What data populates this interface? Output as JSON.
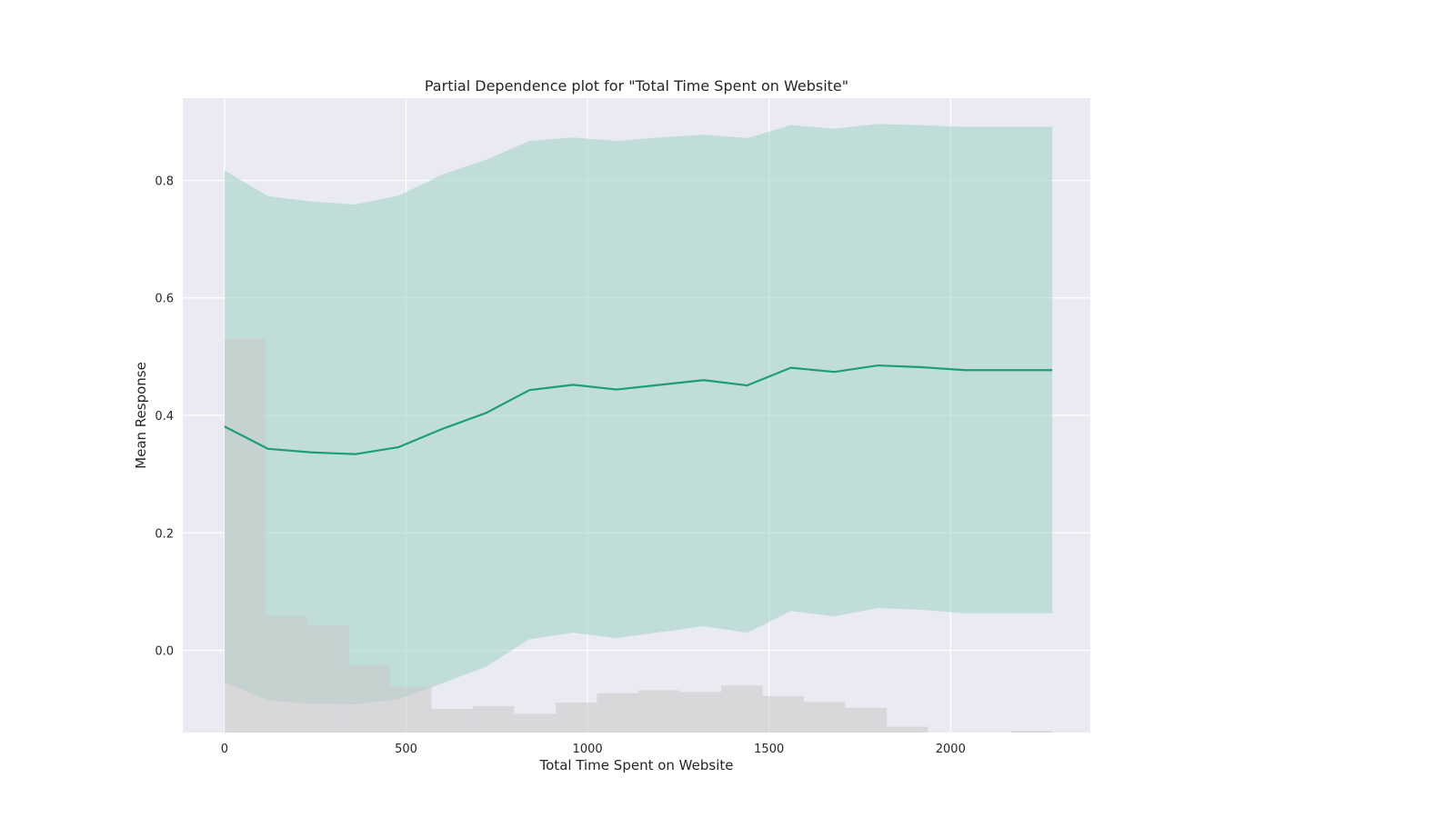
{
  "chart_data": {
    "type": "line",
    "title": "Partial Dependence plot for \"Total Time Spent on Website\"",
    "xlabel": "Total Time Spent on Website",
    "ylabel": "Mean Response",
    "xlim": [
      -115,
      2385
    ],
    "ylim": [
      -0.14,
      0.94
    ],
    "x_ticks": [
      0,
      500,
      1000,
      1500,
      2000
    ],
    "y_ticks": [
      0.0,
      0.2,
      0.4,
      0.6,
      0.8
    ],
    "x_tick_labels": [
      "0",
      "500",
      "1000",
      "1500",
      "2000"
    ],
    "y_tick_labels": [
      "0.0",
      "0.2",
      "0.4",
      "0.6",
      "0.8"
    ],
    "grid": true,
    "colors": {
      "background": "#eaeaf2",
      "grid": "#ffffff",
      "line": "#1b9e77",
      "band": "#a8d5cc",
      "histogram": "#c8c8c8"
    },
    "series": [
      {
        "x": [
          0,
          120,
          240,
          360,
          480,
          600,
          720,
          840,
          960,
          1080,
          1200,
          1320,
          1440,
          1560,
          1680,
          1800,
          1920,
          2040,
          2160,
          2280
        ],
        "mean": [
          0.381,
          0.343,
          0.337,
          0.334,
          0.346,
          0.377,
          0.404,
          0.443,
          0.452,
          0.444,
          0.452,
          0.46,
          0.451,
          0.481,
          0.474,
          0.485,
          0.482,
          0.477,
          0.477,
          0.477
        ],
        "upper": [
          0.817,
          0.773,
          0.764,
          0.759,
          0.774,
          0.81,
          0.835,
          0.867,
          0.873,
          0.867,
          0.873,
          0.878,
          0.872,
          0.894,
          0.888,
          0.896,
          0.894,
          0.891,
          0.891,
          0.891
        ],
        "lower": [
          -0.055,
          -0.085,
          -0.091,
          -0.092,
          -0.083,
          -0.056,
          -0.028,
          0.019,
          0.03,
          0.021,
          0.031,
          0.041,
          0.03,
          0.067,
          0.058,
          0.072,
          0.069,
          0.063,
          0.063,
          0.063
        ]
      }
    ],
    "histogram": {
      "bin_edges": [
        0,
        114,
        228,
        342,
        456,
        570,
        684,
        798,
        912,
        1026,
        1140,
        1254,
        1368,
        1482,
        1596,
        1710,
        1824,
        1938,
        2052,
        2166,
        2280
      ],
      "tops": [
        0.53,
        0.059,
        0.042,
        -0.025,
        -0.062,
        -0.1,
        -0.095,
        -0.108,
        -0.089,
        -0.073,
        -0.068,
        -0.071,
        -0.06,
        -0.078,
        -0.088,
        -0.098,
        -0.13,
        -0.14,
        -0.14,
        -0.137
      ]
    }
  }
}
